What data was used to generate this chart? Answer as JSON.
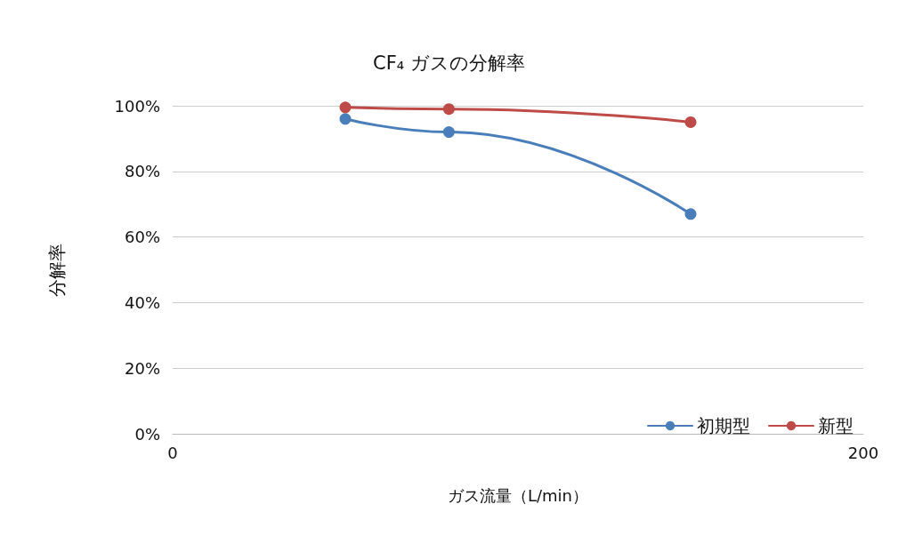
{
  "chart_data": {
    "type": "line",
    "title": "CF₄ ガスの分解率",
    "xlabel": "ガス流量（L/min）",
    "ylabel": "分解率",
    "x": [
      50,
      80,
      150
    ],
    "series": [
      {
        "name": "初期型",
        "color": "#4a7ebb",
        "values": [
          96,
          92,
          67
        ]
      },
      {
        "name": "新型",
        "color": "#be4b48",
        "values": [
          99.5,
          99,
          95
        ]
      }
    ],
    "xlim": [
      0,
      200
    ],
    "xticks": [
      0,
      200
    ],
    "ylim": [
      0,
      100
    ],
    "yticks": [
      {
        "value": 0,
        "label": "0%"
      },
      {
        "value": 20,
        "label": "20%"
      },
      {
        "value": 40,
        "label": "40%"
      },
      {
        "value": 60,
        "label": "60%"
      },
      {
        "value": 80,
        "label": "80%"
      },
      {
        "value": 100,
        "label": "100%"
      }
    ],
    "grid": "y",
    "legend": "bottom right",
    "marker": "circle",
    "line_style": "solid"
  }
}
